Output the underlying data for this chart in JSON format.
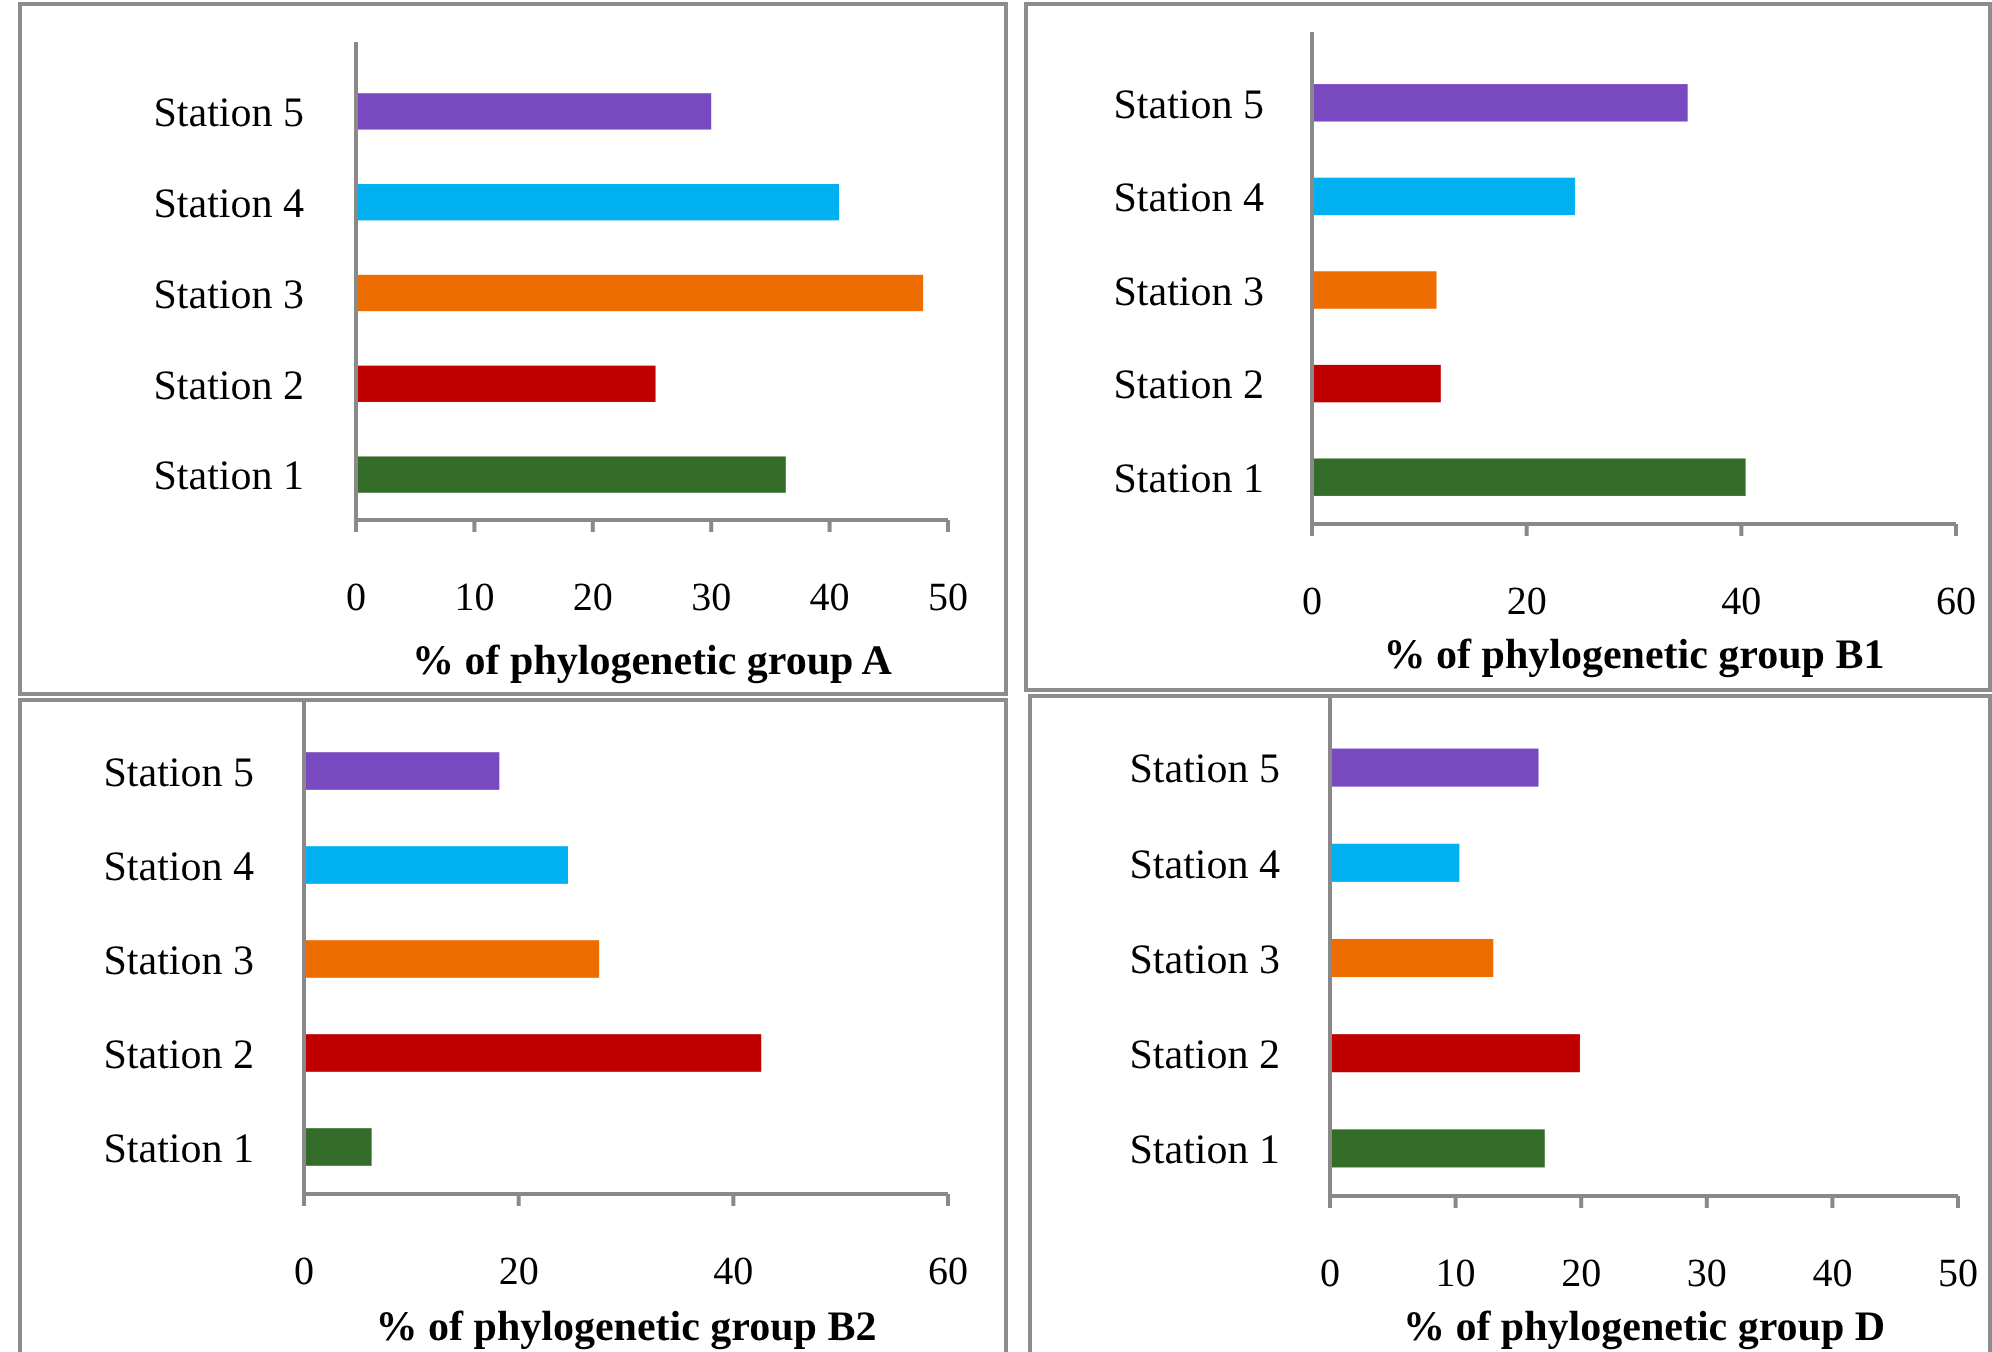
{
  "chart_data": [
    {
      "type": "bar",
      "orientation": "horizontal",
      "categories": [
        "Station 5",
        "Station 4",
        "Station 3",
        "Station 2",
        "Station 1"
      ],
      "values": [
        30,
        40.8,
        47.9,
        25.3,
        36.3
      ],
      "colors": [
        "#7849bf",
        "#00b0f0",
        "#ed6d00",
        "#c00000",
        "#346c29"
      ],
      "xlim": [
        0,
        50
      ],
      "xticks": [
        0,
        10,
        20,
        30,
        40,
        50
      ],
      "xlabel": "% of phylogenetic group A",
      "grid": false
    },
    {
      "type": "bar",
      "orientation": "horizontal",
      "categories": [
        "Station 5",
        "Station 4",
        "Station 3",
        "Station 2",
        "Station 1"
      ],
      "values": [
        35,
        24.5,
        11.6,
        12,
        40.4
      ],
      "colors": [
        "#7849bf",
        "#00b0f0",
        "#ed6d00",
        "#c00000",
        "#346c29"
      ],
      "xlim": [
        0,
        60
      ],
      "xticks": [
        0,
        20,
        40,
        60
      ],
      "xlabel": "% of phylogenetic group B1",
      "grid": false
    },
    {
      "type": "bar",
      "orientation": "horizontal",
      "categories": [
        "Station 5",
        "Station 4",
        "Station 3",
        "Station 2",
        "Station 1"
      ],
      "values": [
        18.2,
        24.6,
        27.5,
        42.6,
        6.3
      ],
      "colors": [
        "#7849bf",
        "#00b0f0",
        "#ed6d00",
        "#c00000",
        "#346c29"
      ],
      "xlim": [
        0,
        60
      ],
      "xticks": [
        0,
        20,
        40,
        60
      ],
      "xlabel": "% of phylogenetic group B2",
      "grid": false
    },
    {
      "type": "bar",
      "orientation": "horizontal",
      "categories": [
        "Station 5",
        "Station 4",
        "Station 3",
        "Station 2",
        "Station 1"
      ],
      "values": [
        16.6,
        10.3,
        13,
        19.9,
        17.1
      ],
      "colors": [
        "#7849bf",
        "#00b0f0",
        "#ed6d00",
        "#c00000",
        "#346c29"
      ],
      "xlim": [
        0,
        50
      ],
      "xticks": [
        0,
        10,
        20,
        30,
        40,
        50
      ],
      "xlabel": "% of phylogenetic group D",
      "grid": false
    }
  ]
}
